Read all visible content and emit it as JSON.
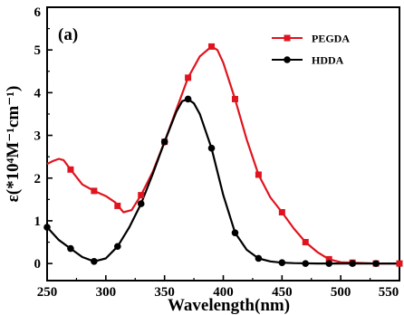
{
  "chart_data": {
    "type": "line",
    "panel_label": "(a)",
    "xlabel": "Wavelength(nm)",
    "ylabel": "ε(*10⁴M⁻¹cm⁻¹)",
    "xlim": [
      250,
      550
    ],
    "ylim": [
      -0.4,
      6
    ],
    "xticks": [
      "250",
      "300",
      "350",
      "400",
      "450",
      "500",
      "550"
    ],
    "yticks": [
      "0",
      "1",
      "2",
      "3",
      "4",
      "5",
      "6"
    ],
    "legend_position": "top-right",
    "series": [
      {
        "name": "PEGDA",
        "color": "#e0141e",
        "marker": "square",
        "curve": [
          [
            250,
            2.33
          ],
          [
            255,
            2.4
          ],
          [
            260,
            2.45
          ],
          [
            264,
            2.42
          ],
          [
            270,
            2.2
          ],
          [
            280,
            1.85
          ],
          [
            290,
            1.7
          ],
          [
            300,
            1.58
          ],
          [
            308,
            1.43
          ],
          [
            315,
            1.2
          ],
          [
            322,
            1.25
          ],
          [
            330,
            1.6
          ],
          [
            340,
            2.15
          ],
          [
            350,
            2.85
          ],
          [
            360,
            3.6
          ],
          [
            370,
            4.35
          ],
          [
            380,
            4.85
          ],
          [
            390,
            5.08
          ],
          [
            395,
            5.0
          ],
          [
            400,
            4.7
          ],
          [
            410,
            3.85
          ],
          [
            420,
            2.9
          ],
          [
            430,
            2.08
          ],
          [
            440,
            1.55
          ],
          [
            450,
            1.2
          ],
          [
            460,
            0.82
          ],
          [
            470,
            0.5
          ],
          [
            480,
            0.27
          ],
          [
            490,
            0.1
          ],
          [
            500,
            0.03
          ],
          [
            510,
            0.02
          ],
          [
            530,
            0.0
          ],
          [
            550,
            0.0
          ]
        ],
        "points": [
          [
            270,
            2.2
          ],
          [
            290,
            1.7
          ],
          [
            310,
            1.35
          ],
          [
            330,
            1.6
          ],
          [
            350,
            2.85
          ],
          [
            370,
            4.35
          ],
          [
            390,
            5.08
          ],
          [
            410,
            3.85
          ],
          [
            430,
            2.08
          ],
          [
            450,
            1.2
          ],
          [
            470,
            0.5
          ],
          [
            490,
            0.1
          ],
          [
            510,
            0.02
          ],
          [
            530,
            0.0
          ],
          [
            550,
            0.0
          ]
        ]
      },
      {
        "name": "HDDA",
        "color": "#000000",
        "marker": "circle",
        "curve": [
          [
            250,
            0.85
          ],
          [
            255,
            0.7
          ],
          [
            260,
            0.55
          ],
          [
            270,
            0.35
          ],
          [
            280,
            0.15
          ],
          [
            290,
            0.05
          ],
          [
            300,
            0.12
          ],
          [
            310,
            0.4
          ],
          [
            320,
            0.85
          ],
          [
            330,
            1.4
          ],
          [
            340,
            2.1
          ],
          [
            350,
            2.85
          ],
          [
            360,
            3.55
          ],
          [
            365,
            3.8
          ],
          [
            370,
            3.85
          ],
          [
            375,
            3.75
          ],
          [
            380,
            3.5
          ],
          [
            390,
            2.7
          ],
          [
            400,
            1.6
          ],
          [
            410,
            0.72
          ],
          [
            420,
            0.32
          ],
          [
            430,
            0.12
          ],
          [
            440,
            0.05
          ],
          [
            450,
            0.02
          ],
          [
            460,
            0.01
          ],
          [
            480,
            0.0
          ],
          [
            550,
            0.0
          ]
        ],
        "points": [
          [
            250,
            0.85
          ],
          [
            270,
            0.35
          ],
          [
            290,
            0.05
          ],
          [
            310,
            0.4
          ],
          [
            330,
            1.4
          ],
          [
            350,
            2.85
          ],
          [
            370,
            3.85
          ],
          [
            390,
            2.7
          ],
          [
            410,
            0.72
          ],
          [
            430,
            0.12
          ],
          [
            450,
            0.02
          ],
          [
            470,
            0.0
          ],
          [
            490,
            0.0
          ],
          [
            510,
            0.0
          ],
          [
            530,
            0.0
          ]
        ]
      }
    ]
  }
}
